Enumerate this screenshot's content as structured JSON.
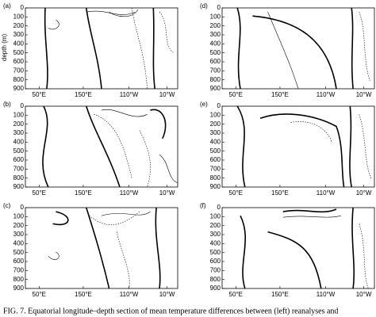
{
  "figure": {
    "ylabel": "depth (m)",
    "yticks": [
      0,
      100,
      200,
      300,
      400,
      500,
      600,
      700,
      800,
      900
    ],
    "xticks": [
      "50°E",
      "150°E",
      "110°W",
      "10°W"
    ],
    "panels": [
      {
        "label": "(a)"
      },
      {
        "label": "(b)"
      },
      {
        "label": "(c)"
      },
      {
        "label": "(d)"
      },
      {
        "label": "(e)"
      },
      {
        "label": "(f)"
      }
    ],
    "caption": "FIG. 7. Equatorial longitude–depth section of mean temperature differences between (left) reanalyses and"
  }
}
